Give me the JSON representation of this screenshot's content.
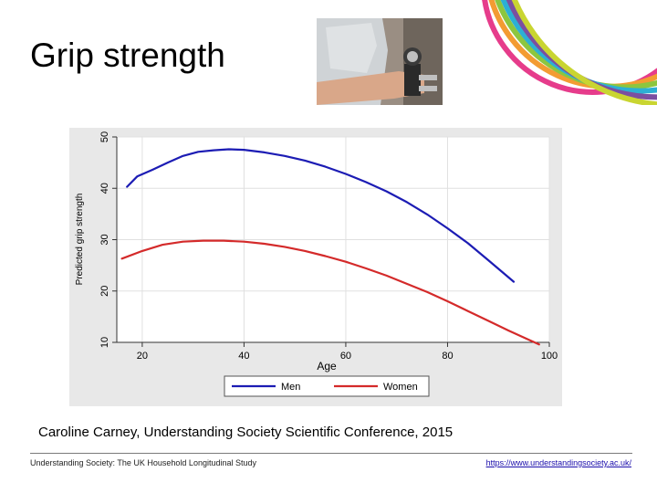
{
  "slide": {
    "title": "Grip strength",
    "caption": "Caroline Carney, Understanding Society Scientific Conference, 2015",
    "footer_left": "Understanding Society: The UK Household Longitudinal Study",
    "footer_link": "https://www.understandingsociety.ac.uk/"
  },
  "brand_colors": [
    "#e63c8b",
    "#f39c32",
    "#8cc63f",
    "#2cb0d4",
    "#7b4fa0",
    "#c9d531"
  ],
  "chart_data": {
    "type": "line",
    "xlabel": "Age",
    "ylabel": "Predicted grip strength",
    "xlim": [
      15,
      100
    ],
    "ylim": [
      10,
      50
    ],
    "x_ticks": [
      20,
      40,
      60,
      80,
      100
    ],
    "y_ticks": [
      10,
      20,
      30,
      40,
      50
    ],
    "grid": true,
    "legend": "bottom",
    "series": [
      {
        "name": "Men",
        "color": "#1c1cb4",
        "x": [
          17,
          19,
          22,
          25,
          28,
          31,
          34,
          37,
          40,
          44,
          48,
          52,
          56,
          60,
          64,
          68,
          72,
          76,
          80,
          84,
          88,
          93
        ],
        "y": [
          40.3,
          42.3,
          43.6,
          45.0,
          46.3,
          47.1,
          47.4,
          47.6,
          47.5,
          47.0,
          46.3,
          45.4,
          44.2,
          42.8,
          41.2,
          39.4,
          37.3,
          34.9,
          32.2,
          29.3,
          26.0,
          21.8
        ]
      },
      {
        "name": "Women",
        "color": "#d42a2a",
        "x": [
          16,
          20,
          24,
          28,
          32,
          36,
          40,
          44,
          48,
          52,
          56,
          60,
          64,
          68,
          72,
          76,
          80,
          84,
          88,
          92,
          96,
          98
        ],
        "y": [
          26.3,
          27.8,
          29.0,
          29.6,
          29.8,
          29.8,
          29.6,
          29.2,
          28.6,
          27.8,
          26.8,
          25.7,
          24.4,
          23.0,
          21.4,
          19.8,
          18.0,
          16.1,
          14.2,
          12.3,
          10.5,
          9.6
        ]
      }
    ]
  }
}
